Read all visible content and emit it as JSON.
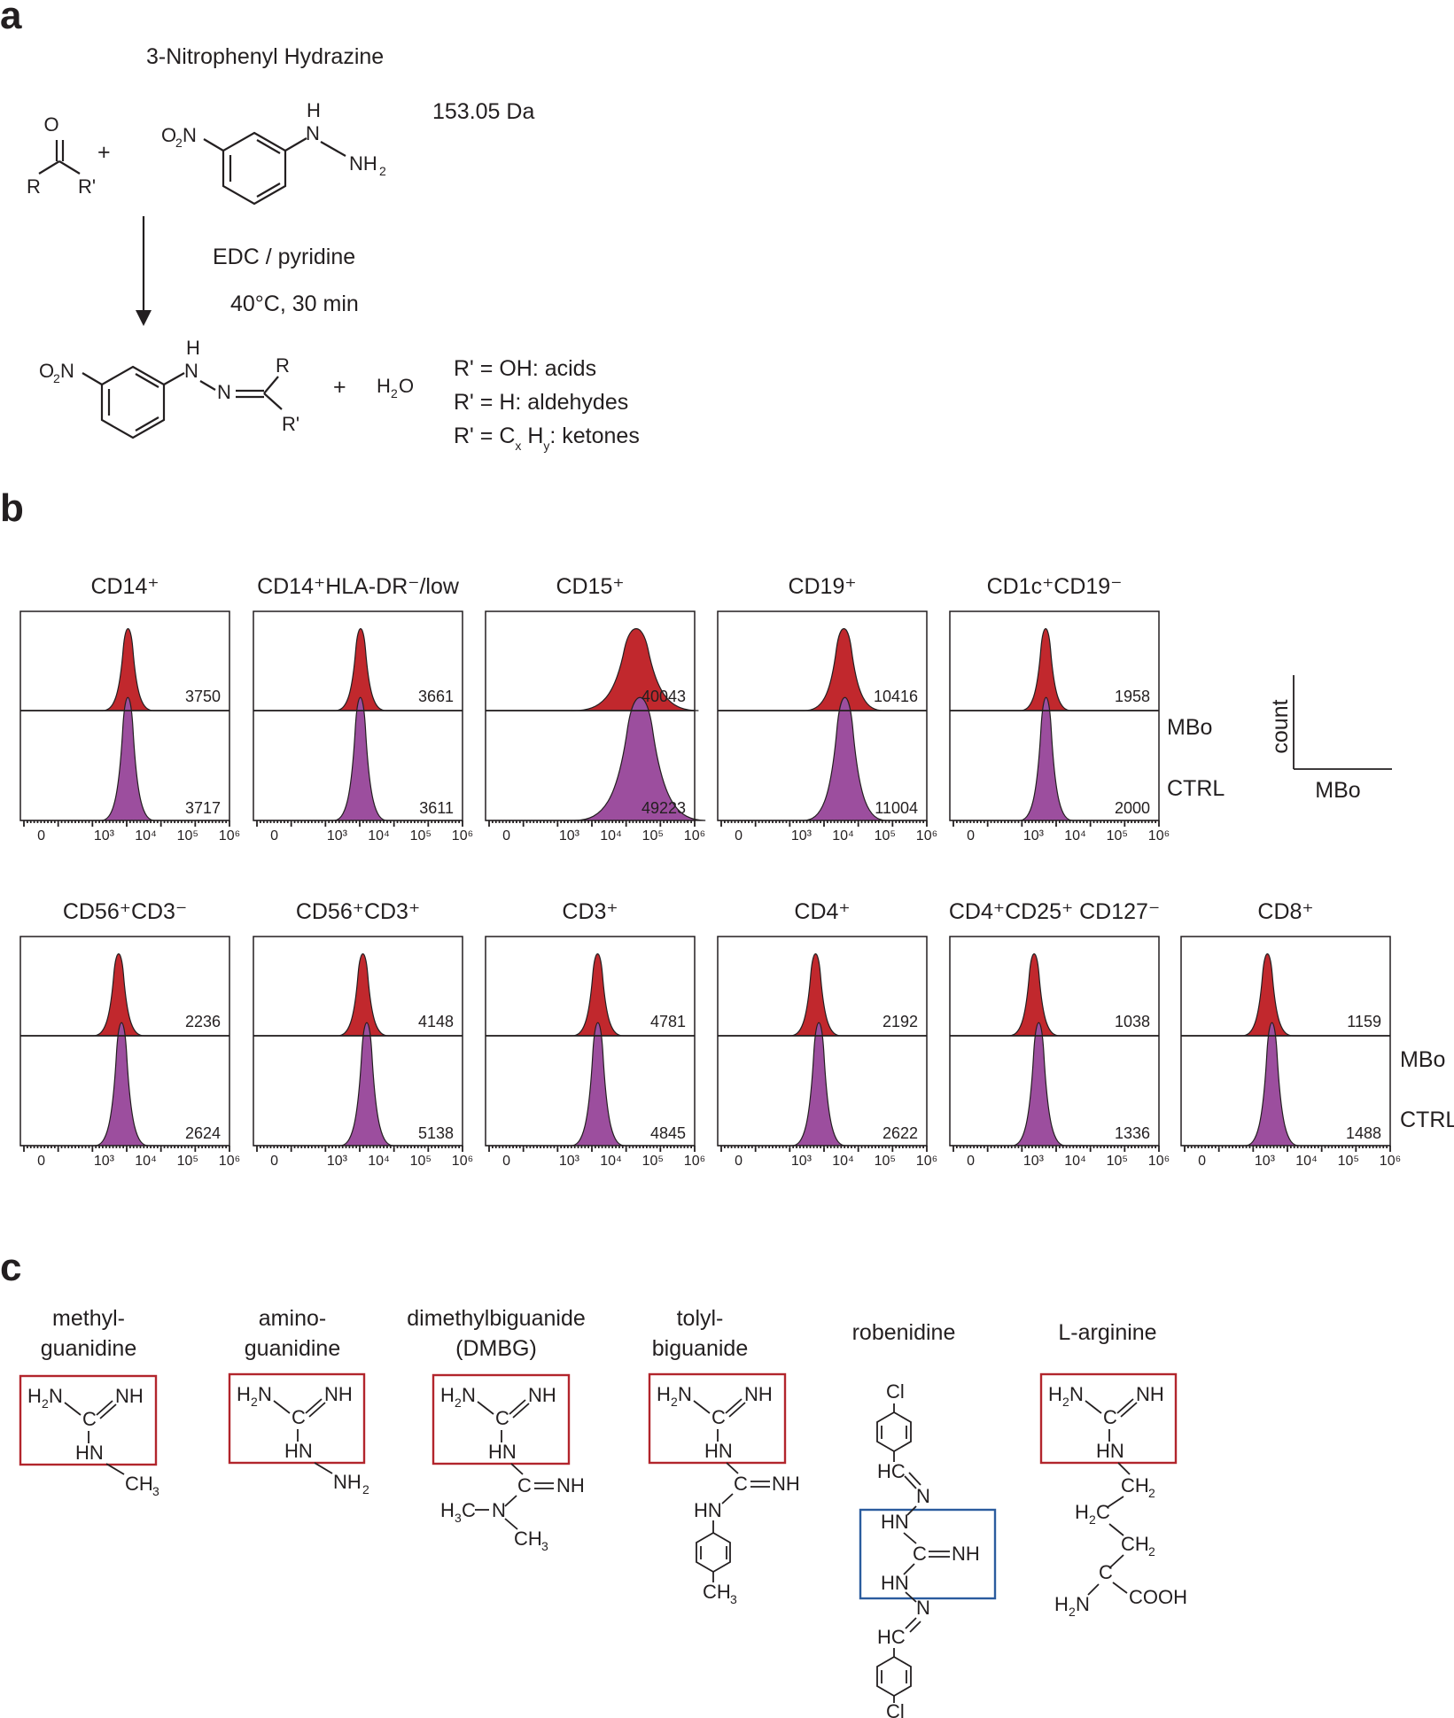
{
  "panel_a": {
    "label": "a",
    "reagent_name": "3-Nitrophenyl Hydrazine",
    "mass": "153.05 Da",
    "condition_1": "EDC / pyridine",
    "condition_2": "40°C, 30 min",
    "plus": "+",
    "water": "H",
    "water_sub": "2",
    "water_o": "O",
    "legend": [
      {
        "lhs": "R' = OH: acids"
      },
      {
        "lhs": "R' = H: aldehydes"
      },
      {
        "lhs": "R' = C",
        "x": "x",
        "mid": " H",
        "y": "y",
        "rhs": ": ketones"
      }
    ]
  },
  "panel_b": {
    "label": "b",
    "row_labels": {
      "top": "MBo",
      "bottom": "CTRL"
    },
    "key": {
      "ylabel": "count",
      "xlabel": "MBo"
    },
    "chart_data": {
      "type": "area",
      "x_axis": "log",
      "xlim_decades": [
        0,
        6
      ],
      "ticks": [
        "0",
        "10³",
        "10⁴",
        "10⁵",
        "10⁶"
      ],
      "series_names": [
        "MBo",
        "CTRL"
      ],
      "colors": {
        "MBo": "#c1282d",
        "CTRL": "#9c4e9e"
      },
      "rows": [
        [
          {
            "title": "CD14⁺",
            "mbo": 3750,
            "ctrl": 3717
          },
          {
            "title": "CD14⁺HLA-DR⁻/low",
            "mbo": 3661,
            "ctrl": 3611
          },
          {
            "title": "CD15⁺",
            "mbo": 40043,
            "ctrl": 49223
          },
          {
            "title": "CD19⁺",
            "mbo": 10416,
            "ctrl": 11004
          },
          {
            "title": "CD1c⁺CD19⁻",
            "mbo": 1958,
            "ctrl": 2000
          }
        ],
        [
          {
            "title": "CD56⁺CD3⁻",
            "mbo": 2236,
            "ctrl": 2624
          },
          {
            "title": "CD56⁺CD3⁺",
            "mbo": 4148,
            "ctrl": 5138
          },
          {
            "title": "CD3⁺",
            "mbo": 4781,
            "ctrl": 4845
          },
          {
            "title": "CD4⁺",
            "mbo": 2192,
            "ctrl": 2622
          },
          {
            "title": "CD4⁺CD25⁺ CD127⁻",
            "mbo": 1038,
            "ctrl": 1336
          },
          {
            "title": "CD8⁺",
            "mbo": 1159,
            "ctrl": 1488
          }
        ]
      ]
    }
  },
  "panel_c": {
    "label": "c",
    "compounds": [
      {
        "name1": "methyl-",
        "name2": "guanidine"
      },
      {
        "name1": "amino-",
        "name2": "guanidine"
      },
      {
        "name1": "dimethylbiguanide",
        "name2": "(DMBG)"
      },
      {
        "name1": "tolyl-",
        "name2": "biguanide"
      },
      {
        "name1": "robenidine",
        "name2": ""
      },
      {
        "name1": "L-arginine",
        "name2": ""
      }
    ]
  }
}
